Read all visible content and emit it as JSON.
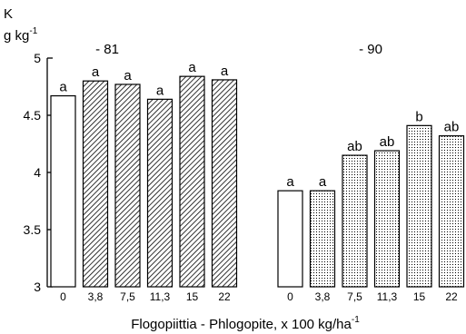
{
  "chart_data": {
    "type": "bar",
    "ylabel": "K",
    "yunit": "g kg",
    "yunit_sup": "-1",
    "xlabel": "Flogopiittia - Phlogopite, x 100  kg/ha",
    "xlabel_sup": "-1",
    "ylim": [
      3,
      5
    ],
    "yticks": [
      "3",
      "3.5",
      "4",
      "4.5",
      "5"
    ],
    "ytick_values": [
      3,
      3.5,
      4,
      4.5,
      5
    ],
    "grid": false,
    "groups": [
      {
        "name": "- 81",
        "categories": [
          "0",
          "3,8",
          "7,5",
          "11,3",
          "15",
          "22"
        ],
        "values": [
          4.67,
          4.8,
          4.77,
          4.64,
          4.84,
          4.81
        ],
        "labels": [
          "a",
          "a",
          "a",
          "a",
          "a",
          "a"
        ],
        "fills": [
          "white",
          "hatched",
          "hatched",
          "hatched",
          "hatched",
          "hatched"
        ]
      },
      {
        "name": "- 90",
        "categories": [
          "0",
          "3,8",
          "7,5",
          "11,3",
          "15",
          "22"
        ],
        "values": [
          3.84,
          3.84,
          4.15,
          4.19,
          4.41,
          4.32
        ],
        "labels": [
          "a",
          "a",
          "ab",
          "ab",
          "b",
          "ab"
        ],
        "fills": [
          "white",
          "dotted",
          "dotted",
          "dotted",
          "dotted",
          "dotted"
        ]
      }
    ]
  }
}
